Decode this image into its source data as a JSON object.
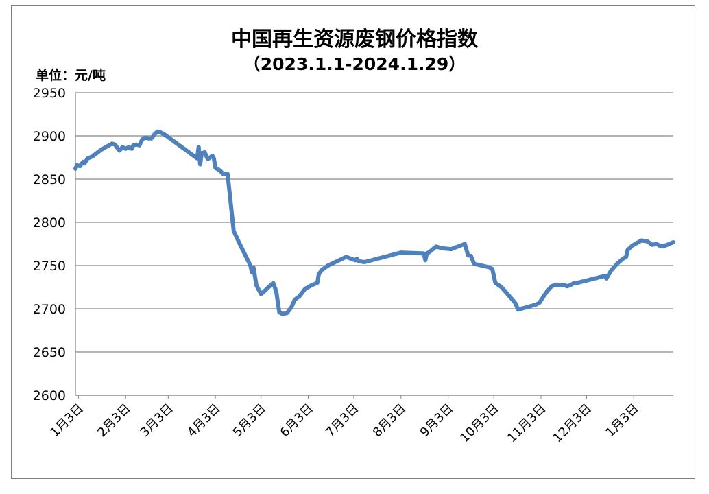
{
  "chart_data": {
    "type": "line",
    "title": "中国再生资源废钢价格指数",
    "subtitle": "（2023.1.1-2024.1.29）",
    "unit_label": "单位：元/吨",
    "ylim": [
      2600,
      2950
    ],
    "yticks": [
      2600,
      2650,
      2700,
      2750,
      2800,
      2850,
      2900,
      2950
    ],
    "xtick_labels": [
      "1月3日",
      "2月3日",
      "3月3日",
      "4月3日",
      "5月3日",
      "6月3日",
      "7月3日",
      "8月3日",
      "9月3日",
      "10月3日",
      "11月3日",
      "12月3日",
      "1月3日"
    ],
    "xtick_dates": [
      "2023-01-03",
      "2023-02-03",
      "2023-03-03",
      "2023-04-03",
      "2023-05-03",
      "2023-06-03",
      "2023-07-03",
      "2023-08-03",
      "2023-09-03",
      "2023-10-03",
      "2023-11-03",
      "2023-12-03",
      "2024-01-03"
    ],
    "x_range": [
      "2023-01-01",
      "2024-01-29"
    ],
    "grid": "horizontal",
    "line_color": "#4f81bd",
    "series": [
      {
        "points": [
          [
            "2023-01-01",
            2862
          ],
          [
            "2023-01-02",
            2866
          ],
          [
            "2023-01-04",
            2865
          ],
          [
            "2023-01-06",
            2870
          ],
          [
            "2023-01-07",
            2868
          ],
          [
            "2023-01-09",
            2874
          ],
          [
            "2023-01-12",
            2876
          ],
          [
            "2023-01-18",
            2884
          ],
          [
            "2023-01-25",
            2891
          ],
          [
            "2023-01-27",
            2890
          ],
          [
            "2023-01-29",
            2885
          ],
          [
            "2023-01-30",
            2883
          ],
          [
            "2023-02-01",
            2887
          ],
          [
            "2023-02-03",
            2885
          ],
          [
            "2023-02-05",
            2887
          ],
          [
            "2023-02-07",
            2885
          ],
          [
            "2023-02-08",
            2889
          ],
          [
            "2023-02-10",
            2890
          ],
          [
            "2023-02-12",
            2889
          ],
          [
            "2023-02-14",
            2896
          ],
          [
            "2023-02-16",
            2898
          ],
          [
            "2023-02-18",
            2897
          ],
          [
            "2023-02-20",
            2897
          ],
          [
            "2023-02-22",
            2902
          ],
          [
            "2023-02-24",
            2905
          ],
          [
            "2023-02-26",
            2904
          ],
          [
            "2023-03-01",
            2901
          ],
          [
            "2023-03-08",
            2892
          ],
          [
            "2023-03-15",
            2883
          ],
          [
            "2023-03-22",
            2874
          ],
          [
            "2023-03-23",
            2887
          ],
          [
            "2023-03-24",
            2867
          ],
          [
            "2023-03-25",
            2880
          ],
          [
            "2023-03-27",
            2881
          ],
          [
            "2023-03-29",
            2873
          ],
          [
            "2023-04-01",
            2877
          ],
          [
            "2023-04-02",
            2874
          ],
          [
            "2023-04-03",
            2863
          ],
          [
            "2023-04-06",
            2860
          ],
          [
            "2023-04-08",
            2856
          ],
          [
            "2023-04-11",
            2856
          ],
          [
            "2023-04-15",
            2790
          ],
          [
            "2023-04-19",
            2775
          ],
          [
            "2023-04-26",
            2750
          ],
          [
            "2023-04-27",
            2742
          ],
          [
            "2023-04-28",
            2748
          ],
          [
            "2023-04-30",
            2727
          ],
          [
            "2023-05-03",
            2717
          ],
          [
            "2023-05-05",
            2720
          ],
          [
            "2023-05-11",
            2730
          ],
          [
            "2023-05-13",
            2720
          ],
          [
            "2023-05-15",
            2696
          ],
          [
            "2023-05-17",
            2694
          ],
          [
            "2023-05-20",
            2695
          ],
          [
            "2023-05-23",
            2702
          ],
          [
            "2023-05-25",
            2710
          ],
          [
            "2023-05-27",
            2713
          ],
          [
            "2023-05-28",
            2714
          ],
          [
            "2023-06-01",
            2723
          ],
          [
            "2023-06-05",
            2727
          ],
          [
            "2023-06-09",
            2730
          ],
          [
            "2023-06-10",
            2740
          ],
          [
            "2023-06-12",
            2745
          ],
          [
            "2023-06-16",
            2750
          ],
          [
            "2023-06-28",
            2760
          ],
          [
            "2023-07-01",
            2758
          ],
          [
            "2023-07-04",
            2756
          ],
          [
            "2023-07-05",
            2758
          ],
          [
            "2023-07-06",
            2755
          ],
          [
            "2023-07-10",
            2754
          ],
          [
            "2023-08-03",
            2765
          ],
          [
            "2023-08-18",
            2764
          ],
          [
            "2023-08-19",
            2756
          ],
          [
            "2023-08-20",
            2764
          ],
          [
            "2023-08-22",
            2766
          ],
          [
            "2023-08-26",
            2772
          ],
          [
            "2023-08-30",
            2770
          ],
          [
            "2023-09-05",
            2769
          ],
          [
            "2023-09-08",
            2771
          ],
          [
            "2023-09-14",
            2775
          ],
          [
            "2023-09-16",
            2762
          ],
          [
            "2023-09-18",
            2761
          ],
          [
            "2023-09-20",
            2752
          ],
          [
            "2023-09-30",
            2748
          ],
          [
            "2023-10-02",
            2746
          ],
          [
            "2023-10-04",
            2730
          ],
          [
            "2023-10-08",
            2725
          ],
          [
            "2023-10-13",
            2715
          ],
          [
            "2023-10-17",
            2707
          ],
          [
            "2023-10-19",
            2699
          ],
          [
            "2023-10-23",
            2701
          ],
          [
            "2023-10-31",
            2705
          ],
          [
            "2023-11-02",
            2707
          ],
          [
            "2023-11-05",
            2715
          ],
          [
            "2023-11-07",
            2720
          ],
          [
            "2023-11-10",
            2726
          ],
          [
            "2023-11-13",
            2728
          ],
          [
            "2023-11-16",
            2727
          ],
          [
            "2023-11-18",
            2728
          ],
          [
            "2023-11-20",
            2726
          ],
          [
            "2023-11-22",
            2727
          ],
          [
            "2023-11-25",
            2730
          ],
          [
            "2023-11-27",
            2730
          ],
          [
            "2023-12-15",
            2738
          ],
          [
            "2023-12-16",
            2735
          ],
          [
            "2023-12-19",
            2744
          ],
          [
            "2023-12-23",
            2752
          ],
          [
            "2023-12-27",
            2758
          ],
          [
            "2023-12-29",
            2760
          ],
          [
            "2023-12-30",
            2768
          ],
          [
            "2024-01-02",
            2773
          ],
          [
            "2024-01-08",
            2779
          ],
          [
            "2024-01-12",
            2778
          ],
          [
            "2024-01-15",
            2774
          ],
          [
            "2024-01-18",
            2775
          ],
          [
            "2024-01-20",
            2773
          ],
          [
            "2024-01-22",
            2772
          ],
          [
            "2024-01-25",
            2774
          ],
          [
            "2024-01-29",
            2777
          ]
        ]
      }
    ]
  }
}
